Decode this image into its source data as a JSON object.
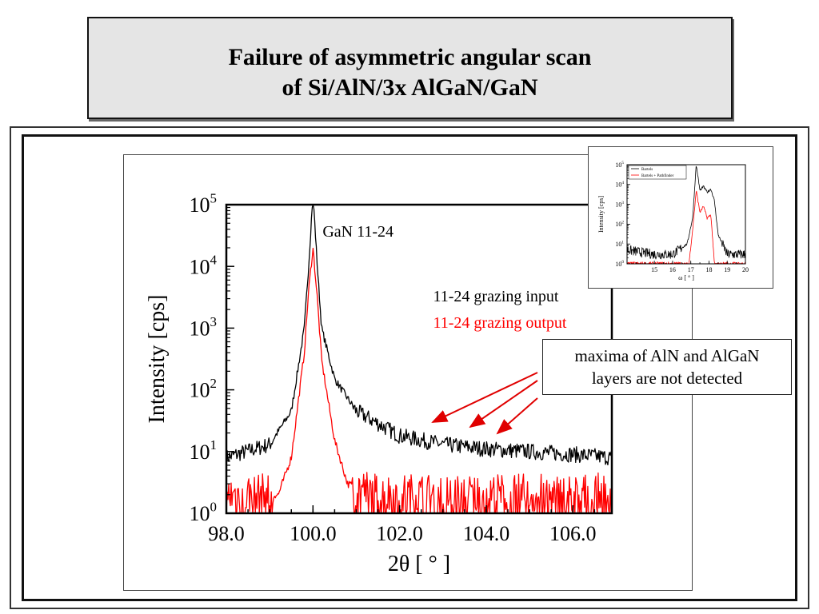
{
  "slide": {
    "title_line1": "Failure of asymmetric angular scan",
    "title_line2": "of Si/AlN/3x AlGaN/GaN"
  },
  "chart_data": [
    {
      "type": "line",
      "xlabel": "2θ [ ° ]",
      "ylabel": "Intensity [cps]",
      "xlim": [
        98.0,
        106.9
      ],
      "ylim": [
        1,
        100000
      ],
      "y_scale": "log",
      "x_ticks": [
        "98.0",
        "100.0",
        "102.0",
        "104.0",
        "106.0"
      ],
      "x_tick_values": [
        98,
        100,
        102,
        104,
        106
      ],
      "y_tick_exponents": [
        "0",
        "1",
        "2",
        "3",
        "4",
        "5"
      ],
      "y_tick_base": "10",
      "peak_label": "GaN 11-24",
      "legend": [
        "11-24 grazing input",
        "11-24 grazing output"
      ],
      "series": [
        {
          "name": "11-24 grazing input",
          "color": "#000000",
          "x": [
            98.0,
            99.0,
            99.5,
            99.8,
            99.9,
            100.0,
            100.1,
            100.2,
            100.5,
            101.0,
            102.0,
            103.0,
            104.0,
            105.0,
            106.0,
            106.9
          ],
          "y": [
            8,
            13,
            45,
            1000,
            10000,
            150000,
            10000,
            1000,
            150,
            45,
            18,
            13,
            11,
            10,
            9,
            8
          ]
        },
        {
          "name": "11-24 grazing output",
          "color": "#ff0000",
          "x": [
            98.0,
            99.2,
            99.5,
            99.8,
            99.9,
            100.0,
            100.1,
            100.2,
            100.5,
            100.8,
            101.5,
            103.0,
            105.0,
            106.9
          ],
          "y": [
            2,
            2,
            8,
            400,
            4000,
            20000,
            3000,
            300,
            15,
            3,
            2,
            2,
            2,
            2
          ]
        }
      ]
    },
    {
      "type": "line",
      "xlabel": "ω [ ° ]",
      "ylabel": "Intensity [cps]",
      "xlim": [
        13.5,
        20
      ],
      "ylim": [
        1,
        100000
      ],
      "y_scale": "log",
      "x_ticks": [
        "15",
        "16",
        "17",
        "18",
        "19",
        "20"
      ],
      "x_tick_values": [
        15,
        16,
        17,
        18,
        19,
        20
      ],
      "y_tick_exponents": [
        "0",
        "1",
        "2",
        "3",
        "4",
        "5"
      ],
      "y_tick_base": "10",
      "legend": [
        "Bartels",
        "Bartels + Pathfinder"
      ],
      "series": [
        {
          "name": "Bartels",
          "color": "#000000",
          "x": [
            13.5,
            15.0,
            16.0,
            16.8,
            17.1,
            17.3,
            17.5,
            17.7,
            17.9,
            18.1,
            18.3,
            18.5,
            19.0,
            20.0
          ],
          "y": [
            5,
            3,
            3,
            10,
            200,
            100000,
            5000,
            8000,
            4000,
            6000,
            1500,
            30,
            3,
            3
          ]
        },
        {
          "name": "Bartels + Pathfinder",
          "color": "#ff0000",
          "x": [
            16.9,
            17.1,
            17.3,
            17.5,
            17.7,
            17.9,
            18.1,
            18.3
          ],
          "y": [
            1,
            50,
            5000,
            400,
            800,
            200,
            300,
            1
          ]
        }
      ]
    }
  ],
  "annotation": {
    "line1": "maxima of AlN and AlGaN",
    "line2": "layers are not detected",
    "arrow_color": "#e00000"
  }
}
